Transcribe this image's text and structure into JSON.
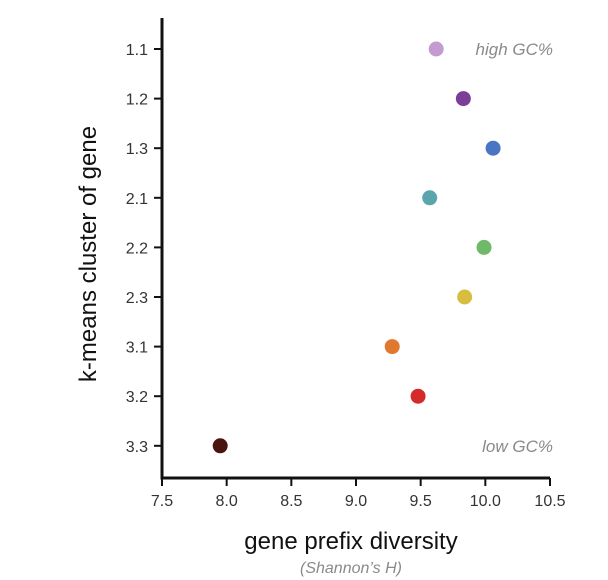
{
  "chart_data": {
    "type": "scatter",
    "xlabel": "gene prefix diversity",
    "xlabel_sub": "(Shannon’s H)",
    "ylabel": "k-means cluster of gene",
    "xlim": [
      7.5,
      10.5
    ],
    "xticks": [
      7.5,
      8.0,
      8.5,
      9.0,
      9.5,
      10.0,
      10.5
    ],
    "xtick_labels": [
      "7.5",
      "8.0",
      "8.5",
      "9.0",
      "9.5",
      "10.0",
      "10.5"
    ],
    "categories": [
      "1.1",
      "1.2",
      "1.3",
      "2.1",
      "2.2",
      "2.3",
      "3.1",
      "3.2",
      "3.3"
    ],
    "points": [
      {
        "category": "1.1",
        "x": 9.62,
        "color": "#c39bd0"
      },
      {
        "category": "1.2",
        "x": 9.83,
        "color": "#7b3f98"
      },
      {
        "category": "1.3",
        "x": 10.06,
        "color": "#4a74c4"
      },
      {
        "category": "2.1",
        "x": 9.57,
        "color": "#5ba5ad"
      },
      {
        "category": "2.2",
        "x": 9.99,
        "color": "#6fb96a"
      },
      {
        "category": "2.3",
        "x": 9.84,
        "color": "#d7be40"
      },
      {
        "category": "3.1",
        "x": 9.28,
        "color": "#e0782f"
      },
      {
        "category": "3.2",
        "x": 9.48,
        "color": "#d42a2a"
      },
      {
        "category": "3.3",
        "x": 7.95,
        "color": "#4a1510"
      }
    ],
    "annotations": [
      {
        "text": "high GC%",
        "category": "1.1"
      },
      {
        "text": "low GC%",
        "category": "3.3"
      }
    ],
    "grid": false,
    "legend": "none"
  }
}
